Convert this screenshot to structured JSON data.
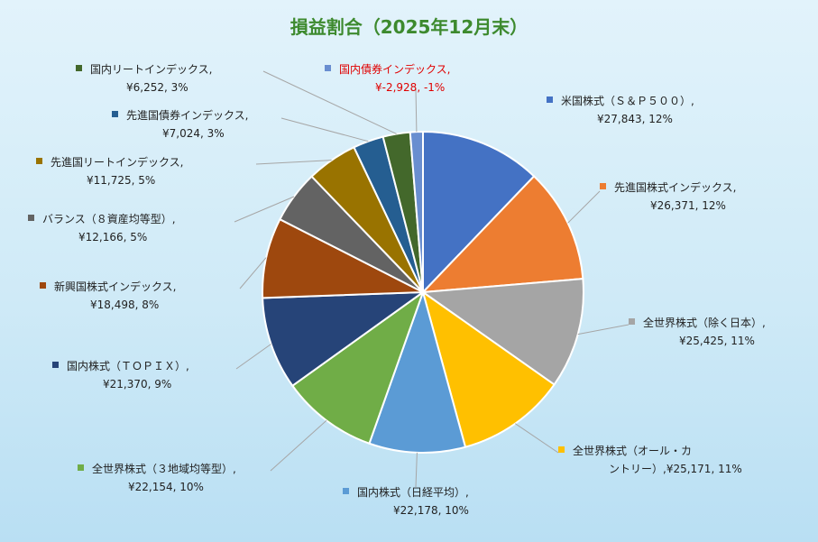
{
  "chart_data": {
    "type": "pie",
    "title": "損益割合（2025年12月末）",
    "legend": "none",
    "slices": [
      {
        "name": "米国株式（Ｓ＆Ｐ５００）",
        "value": 27843,
        "value_label": "¥27,843",
        "percent_label": "12%",
        "color": "#4472c4",
        "label_lines": [
          "米国株式（Ｓ＆Ｐ５００）,",
          "¥27,843, 12%"
        ]
      },
      {
        "name": "先進国株式インデックス",
        "value": 26371,
        "value_label": "¥26,371",
        "percent_label": "12%",
        "color": "#ed7d31",
        "label_lines": [
          "先進国株式インデックス,",
          "¥26,371, 12%"
        ]
      },
      {
        "name": "全世界株式（除く日本）",
        "value": 25425,
        "value_label": "¥25,425",
        "percent_label": "11%",
        "color": "#a5a5a5",
        "label_lines": [
          "全世界株式（除く日本）,",
          "¥25,425, 11%"
        ]
      },
      {
        "name": "全世界株式（オール・カントリー）",
        "value": 25171,
        "value_label": "¥25,171",
        "percent_label": "11%",
        "color": "#ffc000",
        "label_lines": [
          "全世界株式（オール・カ",
          "ントリー）,¥25,171, 11%"
        ]
      },
      {
        "name": "国内株式（日経平均）",
        "value": 22178,
        "value_label": "¥22,178",
        "percent_label": "10%",
        "color": "#5b9bd5",
        "label_lines": [
          "国内株式（日経平均）,",
          "¥22,178, 10%"
        ]
      },
      {
        "name": "全世界株式（３地域均等型）",
        "value": 22154,
        "value_label": "¥22,154",
        "percent_label": "10%",
        "color": "#70ad47",
        "label_lines": [
          "全世界株式（３地域均等型）,",
          "¥22,154, 10%"
        ]
      },
      {
        "name": "国内株式（ＴＯＰＩＸ）",
        "value": 21370,
        "value_label": "¥21,370",
        "percent_label": "9%",
        "color": "#264478",
        "label_lines": [
          "国内株式（ＴＯＰＩＸ）,",
          "¥21,370, 9%"
        ]
      },
      {
        "name": "新興国株式インデックス",
        "value": 18498,
        "value_label": "¥18,498",
        "percent_label": "8%",
        "color": "#9e480e",
        "label_lines": [
          "新興国株式インデックス,",
          "¥18,498, 8%"
        ]
      },
      {
        "name": "バランス（８資産均等型）",
        "value": 12166,
        "value_label": "¥12,166",
        "percent_label": "5%",
        "color": "#636363",
        "label_lines": [
          "バランス（８資産均等型）,",
          "¥12,166, 5%"
        ]
      },
      {
        "name": "先進国リートインデックス",
        "value": 11725,
        "value_label": "¥11,725",
        "percent_label": "5%",
        "color": "#997300",
        "label_lines": [
          "先進国リートインデックス,",
          "¥11,725, 5%"
        ]
      },
      {
        "name": "先進国債券インデックス",
        "value": 7024,
        "value_label": "¥7,024",
        "percent_label": "3%",
        "color": "#255e91",
        "label_lines": [
          "先進国債券インデックス,",
          "¥7,024, 3%"
        ]
      },
      {
        "name": "国内リートインデックス",
        "value": 6252,
        "value_label": "¥6,252",
        "percent_label": "3%",
        "color": "#43682b",
        "label_lines": [
          "国内リートインデックス,",
          "¥6,252, 3%"
        ]
      },
      {
        "name": "国内債券インデックス",
        "value": -2928,
        "value_label": "¥-2,928",
        "percent_label": "-1%",
        "color": "#698ed0",
        "label_lines": [
          "国内債券インデックス,",
          "¥-2,928, -1%"
        ]
      }
    ]
  }
}
